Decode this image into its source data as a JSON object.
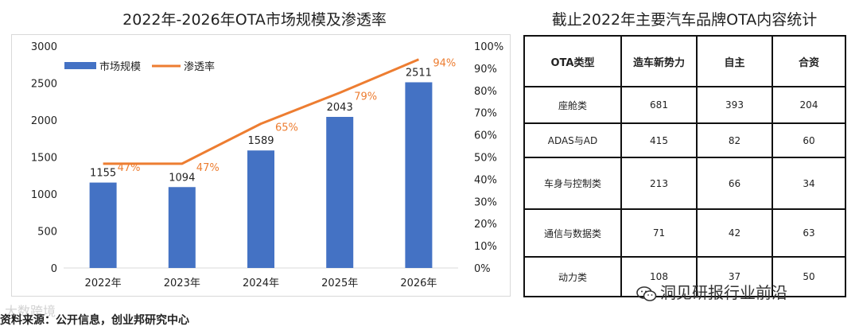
{
  "chart_title": "2022年-2026年OTA市场规模及渗透率",
  "table_title": "截止2022年主要汽车品牌OTA内容统计",
  "chart_data": {
    "type": "bar",
    "categories": [
      "2022年",
      "2023年",
      "2024年",
      "2025年",
      "2026年"
    ],
    "series": [
      {
        "name": "市场规模",
        "type": "bar",
        "axis": "left",
        "color": "#4472c4",
        "values": [
          1155,
          1094,
          1589,
          2043,
          2511
        ]
      },
      {
        "name": "渗透率",
        "type": "line",
        "axis": "right",
        "color": "#ed7d31",
        "values": [
          47,
          47,
          65,
          79,
          94
        ]
      }
    ],
    "value_labels": [
      "1155",
      "1094",
      "1589",
      "2043",
      "2511"
    ],
    "rate_labels": [
      "47%",
      "47%",
      "65%",
      "79%",
      "94%"
    ],
    "ylim": [
      0,
      3000
    ],
    "y_ticks": [
      "0",
      "500",
      "1000",
      "1500",
      "2000",
      "2500",
      "3000"
    ],
    "y2lim": [
      0,
      100
    ],
    "y2_ticks": [
      "0%",
      "10%",
      "20%",
      "30%",
      "40%",
      "50%",
      "60%",
      "70%",
      "80%",
      "90%",
      "100%"
    ],
    "legend": "top-left",
    "grid": false
  },
  "table": {
    "headers": [
      "OTA类型",
      "造车新势力",
      "自主",
      "合资"
    ],
    "rows": [
      [
        "座舱类",
        "681",
        "393",
        "204"
      ],
      [
        "ADAS与AD",
        "415",
        "82",
        "60"
      ],
      [
        "车身与控制类",
        "213",
        "66",
        "34"
      ],
      [
        "通信与数据类",
        "71",
        "42",
        "63"
      ],
      [
        "动力类",
        "108",
        "37",
        "50"
      ]
    ]
  },
  "source": "资料来源：公开信息，创业邦研究中心",
  "watermark_left": "大数跨境",
  "watermark_right": "洞见研报行业前沿"
}
